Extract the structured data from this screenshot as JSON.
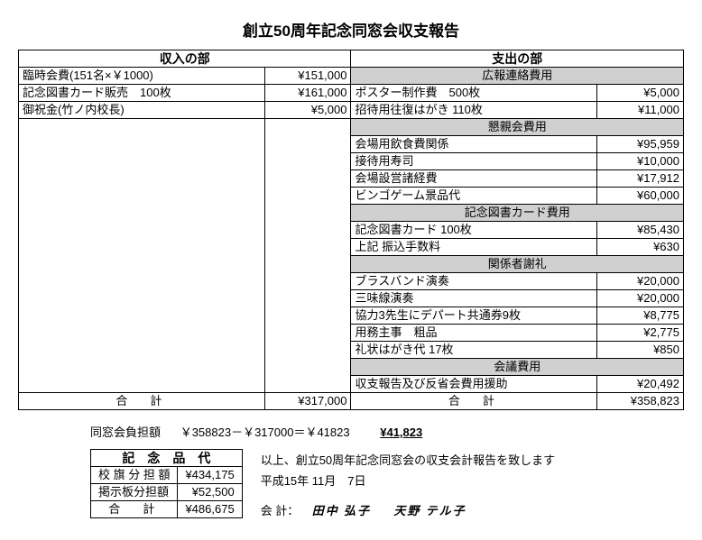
{
  "title": "創立50周年記念同窓会収支報告",
  "income_header": "収入の部",
  "expense_header": "支出の部",
  "income_rows": [
    {
      "label": "臨時会費(151名×￥1000)",
      "amount": "¥151,000"
    },
    {
      "label": "記念図書カード販売　100枚",
      "amount": "¥161,000"
    },
    {
      "label": "御祝金(竹ノ内校長)",
      "amount": "¥5,000"
    }
  ],
  "expense_sections": [
    {
      "header": "広報連絡費用",
      "rows": [
        {
          "label": "ポスター制作費　500枚",
          "amount": "¥5,000"
        },
        {
          "label": "招待用往復はがき 110枚",
          "amount": "¥11,000"
        }
      ]
    },
    {
      "header": "懇親会費用",
      "rows": [
        {
          "label": "会場用飲食費関係",
          "amount": "¥95,959"
        },
        {
          "label": "接待用寿司",
          "amount": "¥10,000"
        },
        {
          "label": "会場設営諸経費",
          "amount": "¥17,912"
        },
        {
          "label": "ビンゴゲーム景品代",
          "amount": "¥60,000"
        }
      ]
    },
    {
      "header": "記念図書カード費用",
      "rows": [
        {
          "label": "記念図書カード 100枚",
          "amount": "¥85,430"
        },
        {
          "label": "上記 振込手数料",
          "amount": "¥630"
        }
      ]
    },
    {
      "header": "関係者謝礼",
      "rows": [
        {
          "label": "ブラスバンド演奏",
          "amount": "¥20,000"
        },
        {
          "label": "三味線演奏",
          "amount": "¥20,000"
        },
        {
          "label": "協力3先生にデパート共通券9枚",
          "amount": "¥8,775"
        },
        {
          "label": "用務主事　粗品",
          "amount": "¥2,775"
        },
        {
          "label": "礼状はがき代 17枚",
          "amount": "¥850"
        }
      ]
    },
    {
      "header": "会議費用",
      "rows": [
        {
          "label": "収支報告及び反省会費用援助",
          "amount": "¥20,492"
        }
      ]
    }
  ],
  "total_label": "合　計",
  "income_total": "¥317,000",
  "expense_total": "¥358,823",
  "calc_label": "同窓会負担額",
  "calc_expr": "￥358823－￥317000＝￥41823",
  "calc_final": "¥41,823",
  "small_header": "記　念　品　代",
  "small_rows": [
    {
      "label": "校 旗 分 担 額",
      "amount": "¥434,175"
    },
    {
      "label": "掲示板分担額",
      "amount": "¥52,500"
    }
  ],
  "small_total_label": "合　計",
  "small_total": "¥486,675",
  "footer_line1": "以上、創立50周年記念同窓会の収支会計報告を致します",
  "footer_line2": "平成15年 11月　7日",
  "acct_label": "会 計：",
  "acct_name1": "田中 弘子",
  "acct_name2": "天野 テル子"
}
